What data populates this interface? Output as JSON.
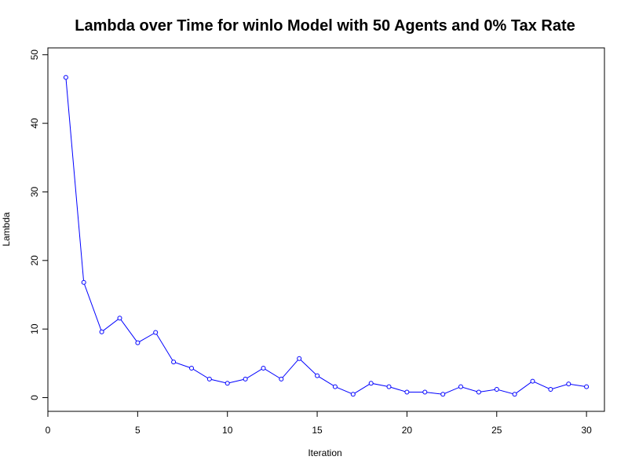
{
  "chart_data": {
    "type": "line",
    "title": "Lambda over Time for winlo Model with 50 Agents and 0% Tax Rate",
    "xlabel": "Iteration",
    "ylabel": "Lambda",
    "xlim": [
      0,
      31
    ],
    "ylim": [
      -2,
      51
    ],
    "xticks": [
      0,
      5,
      10,
      15,
      20,
      25,
      30
    ],
    "yticks": [
      0,
      10,
      20,
      30,
      40,
      50
    ],
    "grid": false,
    "series_color": "#0000ff",
    "marker": "open-circle",
    "x": [
      1,
      2,
      3,
      4,
      5,
      6,
      7,
      8,
      9,
      10,
      11,
      12,
      13,
      14,
      15,
      16,
      17,
      18,
      19,
      20,
      21,
      22,
      23,
      24,
      25,
      26,
      27,
      28,
      29,
      30
    ],
    "y": [
      46.7,
      16.8,
      9.6,
      11.6,
      8.0,
      9.5,
      5.2,
      4.3,
      2.7,
      2.1,
      2.7,
      4.3,
      2.7,
      5.7,
      3.2,
      1.6,
      0.5,
      2.1,
      1.6,
      0.8,
      0.8,
      0.5,
      1.6,
      0.8,
      1.2,
      0.5,
      2.4,
      1.2,
      2.0,
      1.6
    ]
  }
}
